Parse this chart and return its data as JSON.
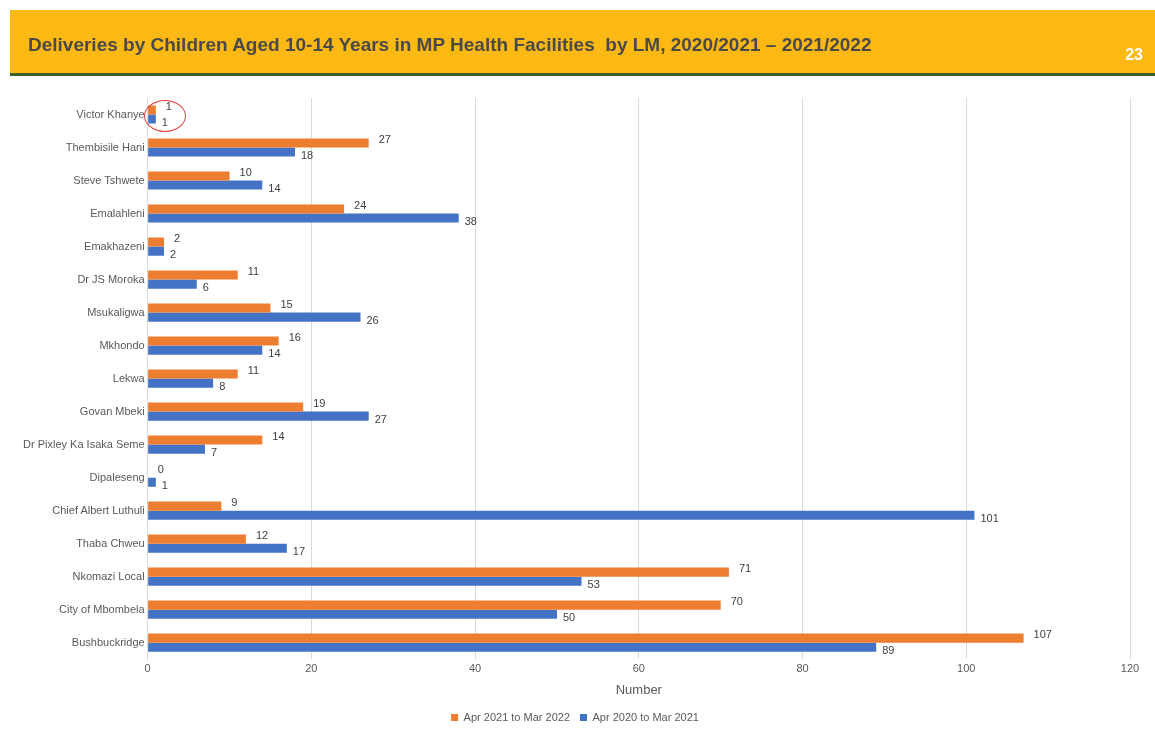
{
  "chart_data": {
    "type": "bar",
    "orientation": "horizontal",
    "title": "Deliveries by Children Aged 10-14 Years in MP Health Facilities  by LM, 2020/2021 – 2021/2022",
    "annotations": [
      "23"
    ],
    "categories": [
      "Victor Khanye",
      "Thembisile Hani",
      "Steve Tshwete",
      "Emalahleni",
      "Emakhazeni",
      "Dr JS Moroka",
      "Msukaligwa",
      "Mkhondo",
      "Lekwa",
      "Govan Mbeki",
      "Dr Pixley Ka Isaka Seme",
      "Dipaleseng",
      "Chief Albert Luthuli",
      "Thaba Chweu",
      "Nkomazi Local",
      "City of Mbombela",
      "Bushbuckridge"
    ],
    "series": [
      {
        "name": "Apr 2021 to Mar 2022",
        "color": "#ed7d31",
        "values": [
          1,
          27,
          10,
          24,
          2,
          11,
          15,
          16,
          11,
          19,
          14,
          0,
          9,
          12,
          71,
          70,
          107
        ]
      },
      {
        "name": "Apr 2020 to Mar 2021",
        "color": "#4472c4",
        "values": [
          1,
          18,
          14,
          38,
          2,
          6,
          26,
          14,
          8,
          27,
          7,
          1,
          101,
          17,
          53,
          50,
          89
        ]
      }
    ],
    "xlabel": "Number",
    "xlim": [
      0,
      120
    ],
    "xticks": [
      0,
      20,
      40,
      60,
      80,
      100,
      120
    ],
    "grid": "x",
    "legend": "bottom",
    "data_labels": true
  }
}
